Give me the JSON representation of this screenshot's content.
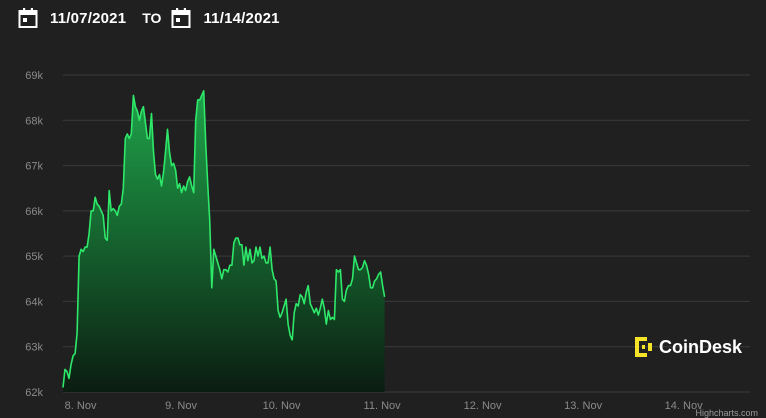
{
  "header": {
    "start_date": "11/07/2021",
    "separator": "TO",
    "end_date": "11/14/2021",
    "icon": "calendar-icon"
  },
  "logo": {
    "text": "CoinDesk",
    "icon": "coindesk-logo-icon"
  },
  "credit": "Highcharts.com",
  "colors": {
    "background": "#202020",
    "line": "#2ee86a",
    "area_top": "#1faa4c",
    "area_bottom": "#0b1d11",
    "grid": "#3a3a3a",
    "tick_text": "#8a8a8a",
    "logo_accent": "#f5e32a"
  },
  "chart_data": {
    "type": "area",
    "title": "",
    "xlabel": "",
    "ylabel": "",
    "xlim": [
      7.885,
      14.72
    ],
    "ylim": [
      62,
      69
    ],
    "grid": true,
    "y_ticks": [
      "62k",
      "63k",
      "64k",
      "65k",
      "66k",
      "67k",
      "68k",
      "69k"
    ],
    "x_ticks": [
      {
        "value": 8,
        "label": "8. Nov"
      },
      {
        "value": 9,
        "label": "9. Nov"
      },
      {
        "value": 10,
        "label": "10. Nov"
      },
      {
        "value": 11,
        "label": "11. Nov"
      },
      {
        "value": 12,
        "label": "12. Nov"
      },
      {
        "value": 13,
        "label": "13. Nov"
      },
      {
        "value": 14,
        "label": "14. Nov"
      }
    ],
    "x_unit": "day of November 2021",
    "y_unit": "price",
    "series": [
      {
        "points": [
          [
            7.885,
            62.1
          ],
          [
            7.905,
            62.5
          ],
          [
            7.925,
            62.45
          ],
          [
            7.945,
            62.3
          ],
          [
            7.965,
            62.6
          ],
          [
            7.985,
            62.8
          ],
          [
            8.005,
            62.85
          ],
          [
            8.025,
            63.3
          ],
          [
            8.045,
            65.0
          ],
          [
            8.065,
            65.15
          ],
          [
            8.085,
            65.1
          ],
          [
            8.105,
            65.2
          ],
          [
            8.125,
            65.2
          ],
          [
            8.145,
            65.5
          ],
          [
            8.165,
            66.0
          ],
          [
            8.185,
            66.0
          ],
          [
            8.205,
            66.3
          ],
          [
            8.225,
            66.15
          ],
          [
            8.245,
            66.1
          ],
          [
            8.265,
            66.0
          ],
          [
            8.285,
            65.9
          ],
          [
            8.305,
            65.4
          ],
          [
            8.325,
            65.35
          ],
          [
            8.345,
            66.45
          ],
          [
            8.365,
            66.0
          ],
          [
            8.385,
            66.05
          ],
          [
            8.405,
            66.0
          ],
          [
            8.425,
            65.9
          ],
          [
            8.445,
            66.1
          ],
          [
            8.465,
            66.15
          ],
          [
            8.485,
            66.5
          ],
          [
            8.505,
            67.6
          ],
          [
            8.525,
            67.7
          ],
          [
            8.545,
            67.6
          ],
          [
            8.565,
            67.7
          ],
          [
            8.585,
            68.55
          ],
          [
            8.605,
            68.3
          ],
          [
            8.625,
            68.2
          ],
          [
            8.645,
            68.0
          ],
          [
            8.665,
            68.2
          ],
          [
            8.685,
            68.3
          ],
          [
            8.705,
            67.95
          ],
          [
            8.725,
            67.6
          ],
          [
            8.745,
            67.6
          ],
          [
            8.765,
            68.15
          ],
          [
            8.785,
            67.3
          ],
          [
            8.805,
            66.8
          ],
          [
            8.825,
            66.7
          ],
          [
            8.845,
            66.8
          ],
          [
            8.865,
            66.55
          ],
          [
            8.885,
            66.85
          ],
          [
            8.905,
            67.3
          ],
          [
            8.925,
            67.8
          ],
          [
            8.945,
            67.3
          ],
          [
            8.965,
            67.0
          ],
          [
            8.985,
            67.05
          ],
          [
            9.005,
            66.9
          ],
          [
            9.025,
            66.5
          ],
          [
            9.045,
            66.6
          ],
          [
            9.065,
            66.4
          ],
          [
            9.085,
            66.55
          ],
          [
            9.105,
            66.45
          ],
          [
            9.125,
            66.65
          ],
          [
            9.145,
            66.75
          ],
          [
            9.165,
            66.55
          ],
          [
            9.185,
            66.4
          ],
          [
            9.205,
            68.0
          ],
          [
            9.225,
            68.45
          ],
          [
            9.245,
            68.45
          ],
          [
            9.265,
            68.55
          ],
          [
            9.285,
            68.65
          ],
          [
            9.305,
            67.5
          ],
          [
            9.325,
            66.6
          ],
          [
            9.345,
            65.8
          ],
          [
            9.365,
            64.3
          ],
          [
            9.385,
            65.15
          ],
          [
            9.405,
            65.0
          ],
          [
            9.425,
            64.85
          ],
          [
            9.445,
            64.7
          ],
          [
            9.465,
            64.5
          ],
          [
            9.485,
            64.7
          ],
          [
            9.505,
            64.7
          ],
          [
            9.525,
            64.65
          ],
          [
            9.545,
            64.8
          ],
          [
            9.565,
            64.8
          ],
          [
            9.585,
            65.3
          ],
          [
            9.605,
            65.4
          ],
          [
            9.625,
            65.4
          ],
          [
            9.645,
            65.25
          ],
          [
            9.665,
            65.25
          ],
          [
            9.685,
            64.8
          ],
          [
            9.705,
            65.2
          ],
          [
            9.725,
            64.9
          ],
          [
            9.745,
            65.15
          ],
          [
            9.765,
            64.85
          ],
          [
            9.785,
            64.9
          ],
          [
            9.805,
            65.2
          ],
          [
            9.825,
            65.0
          ],
          [
            9.845,
            65.2
          ],
          [
            9.865,
            64.95
          ],
          [
            9.885,
            65.0
          ],
          [
            9.905,
            64.85
          ],
          [
            9.925,
            64.85
          ],
          [
            9.945,
            65.2
          ],
          [
            9.965,
            64.7
          ],
          [
            9.985,
            64.5
          ],
          [
            10.005,
            64.45
          ],
          [
            10.025,
            63.8
          ],
          [
            10.045,
            63.65
          ],
          [
            10.065,
            63.75
          ],
          [
            10.085,
            63.9
          ],
          [
            10.105,
            64.05
          ],
          [
            10.125,
            63.5
          ],
          [
            10.145,
            63.25
          ],
          [
            10.165,
            63.15
          ],
          [
            10.185,
            63.75
          ],
          [
            10.205,
            63.95
          ],
          [
            10.225,
            63.9
          ],
          [
            10.245,
            64.15
          ],
          [
            10.265,
            64.1
          ],
          [
            10.285,
            63.95
          ],
          [
            10.305,
            64.2
          ],
          [
            10.325,
            64.35
          ],
          [
            10.345,
            63.95
          ],
          [
            10.365,
            63.85
          ],
          [
            10.385,
            63.75
          ],
          [
            10.405,
            63.85
          ],
          [
            10.425,
            63.7
          ],
          [
            10.445,
            63.85
          ],
          [
            10.465,
            64.05
          ],
          [
            10.485,
            63.85
          ],
          [
            10.505,
            63.5
          ],
          [
            10.525,
            63.8
          ],
          [
            10.545,
            63.6
          ],
          [
            10.565,
            63.65
          ],
          [
            10.585,
            63.6
          ],
          [
            10.605,
            64.7
          ],
          [
            10.625,
            64.65
          ],
          [
            10.645,
            64.7
          ],
          [
            10.665,
            64.05
          ],
          [
            10.685,
            64.0
          ],
          [
            10.705,
            64.25
          ],
          [
            10.725,
            64.35
          ],
          [
            10.745,
            64.35
          ],
          [
            10.765,
            64.5
          ],
          [
            10.785,
            65.0
          ],
          [
            10.805,
            64.85
          ],
          [
            10.825,
            64.7
          ],
          [
            10.845,
            64.7
          ],
          [
            10.865,
            64.75
          ],
          [
            10.885,
            64.9
          ],
          [
            10.905,
            64.8
          ],
          [
            10.925,
            64.6
          ],
          [
            10.945,
            64.3
          ],
          [
            10.965,
            64.3
          ],
          [
            10.985,
            64.45
          ],
          [
            11.005,
            64.5
          ],
          [
            11.025,
            64.6
          ],
          [
            11.045,
            64.65
          ],
          [
            11.065,
            64.35
          ],
          [
            11.085,
            64.1
          ]
        ]
      }
    ]
  }
}
